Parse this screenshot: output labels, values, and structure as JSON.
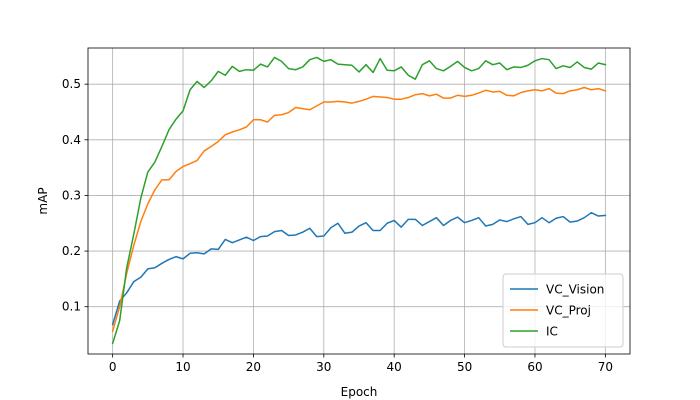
{
  "chart_data": {
    "type": "line",
    "title": "",
    "xlabel": "Epoch",
    "ylabel": "mAP",
    "xlim": [
      -3.5,
      73.5
    ],
    "ylim": [
      0.015,
      0.565
    ],
    "xticks": [
      0,
      10,
      20,
      30,
      40,
      50,
      60,
      70
    ],
    "yticks": [
      0.1,
      0.2,
      0.3,
      0.4,
      0.5
    ],
    "x_tick_labels": [
      "0",
      "10",
      "20",
      "30",
      "40",
      "50",
      "60",
      "70"
    ],
    "y_tick_labels": [
      "0.1",
      "0.2",
      "0.3",
      "0.4",
      "0.5"
    ],
    "grid": true,
    "legend_position": "lower-right",
    "x": [
      0,
      1,
      2,
      3,
      4,
      5,
      6,
      7,
      8,
      9,
      10,
      11,
      12,
      13,
      14,
      15,
      16,
      17,
      18,
      19,
      20,
      21,
      22,
      23,
      24,
      25,
      26,
      27,
      28,
      29,
      30,
      31,
      32,
      33,
      34,
      35,
      36,
      37,
      38,
      39,
      40,
      41,
      42,
      43,
      44,
      45,
      46,
      47,
      48,
      49,
      50,
      51,
      52,
      53,
      54,
      55,
      56,
      57,
      58,
      59,
      60,
      61,
      62,
      63,
      64,
      65,
      66,
      67,
      68,
      69,
      70
    ],
    "series": [
      {
        "name": "VC_Vision",
        "color": "#1f77b4",
        "values": [
          0.068,
          0.11,
          0.125,
          0.145,
          0.153,
          0.168,
          0.17,
          0.178,
          0.185,
          0.19,
          0.186,
          0.196,
          0.197,
          0.195,
          0.204,
          0.203,
          0.221,
          0.215,
          0.22,
          0.225,
          0.219,
          0.226,
          0.227,
          0.235,
          0.237,
          0.228,
          0.229,
          0.234,
          0.241,
          0.226,
          0.227,
          0.242,
          0.25,
          0.232,
          0.234,
          0.245,
          0.251,
          0.237,
          0.237,
          0.25,
          0.255,
          0.243,
          0.257,
          0.257,
          0.246,
          0.253,
          0.26,
          0.246,
          0.255,
          0.261,
          0.251,
          0.255,
          0.26,
          0.245,
          0.248,
          0.256,
          0.253,
          0.258,
          0.262,
          0.248,
          0.251,
          0.26,
          0.251,
          0.259,
          0.262,
          0.252,
          0.254,
          0.26,
          0.269,
          0.263,
          0.264
        ]
      },
      {
        "name": "VC_Proj",
        "color": "#ff7f0e",
        "values": [
          0.056,
          0.1,
          0.16,
          0.21,
          0.253,
          0.285,
          0.31,
          0.328,
          0.328,
          0.343,
          0.352,
          0.357,
          0.363,
          0.38,
          0.388,
          0.397,
          0.409,
          0.414,
          0.418,
          0.423,
          0.436,
          0.436,
          0.432,
          0.444,
          0.445,
          0.449,
          0.458,
          0.456,
          0.454,
          0.461,
          0.468,
          0.468,
          0.469,
          0.468,
          0.466,
          0.469,
          0.473,
          0.478,
          0.477,
          0.476,
          0.473,
          0.473,
          0.476,
          0.481,
          0.483,
          0.479,
          0.482,
          0.475,
          0.475,
          0.48,
          0.478,
          0.48,
          0.484,
          0.489,
          0.486,
          0.487,
          0.48,
          0.479,
          0.485,
          0.488,
          0.49,
          0.488,
          0.492,
          0.484,
          0.483,
          0.488,
          0.49,
          0.494,
          0.49,
          0.492,
          0.488
        ]
      },
      {
        "name": "IC",
        "color": "#2ca02c",
        "values": [
          0.034,
          0.075,
          0.17,
          0.23,
          0.295,
          0.342,
          0.36,
          0.388,
          0.418,
          0.437,
          0.452,
          0.49,
          0.505,
          0.494,
          0.506,
          0.523,
          0.516,
          0.532,
          0.523,
          0.526,
          0.525,
          0.536,
          0.531,
          0.548,
          0.541,
          0.528,
          0.526,
          0.531,
          0.544,
          0.548,
          0.541,
          0.544,
          0.536,
          0.535,
          0.534,
          0.522,
          0.535,
          0.521,
          0.546,
          0.525,
          0.524,
          0.531,
          0.516,
          0.509,
          0.535,
          0.542,
          0.528,
          0.524,
          0.532,
          0.541,
          0.53,
          0.524,
          0.528,
          0.542,
          0.535,
          0.538,
          0.526,
          0.531,
          0.53,
          0.534,
          0.542,
          0.546,
          0.544,
          0.528,
          0.533,
          0.53,
          0.54,
          0.53,
          0.527,
          0.538,
          0.535
        ]
      }
    ]
  }
}
